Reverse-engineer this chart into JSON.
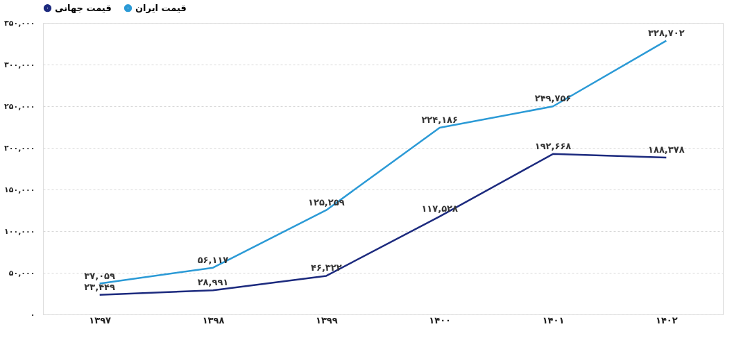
{
  "chart_data": {
    "type": "line",
    "categories": [
      "۱۳۹۷",
      "۱۳۹۸",
      "۱۳۹۹",
      "۱۴۰۰",
      "۱۴۰۱",
      "۱۴۰۲"
    ],
    "series": [
      {
        "name": "قیمت جهانی",
        "color": "#1c2a7e",
        "values": [
          23449,
          28991,
          46322,
          117528,
          192668,
          188378
        ],
        "value_labels": [
          "۲۳,۴۴۹",
          "۲۸,۹۹۱",
          "۴۶,۳۲۲",
          "۱۱۷,۵۲۸",
          "۱۹۲,۶۶۸",
          "۱۸۸,۳۷۸"
        ]
      },
      {
        "name": "قیمت ایران",
        "color": "#2b9ad6",
        "values": [
          37059,
          56117,
          125259,
          224186,
          249756,
          328702
        ],
        "value_labels": [
          "۳۷,۰۵۹",
          "۵۶,۱۱۷",
          "۱۲۵,۲۵۹",
          "۲۲۴,۱۸۶",
          "۲۴۹,۷۵۶",
          "۳۲۸,۷۰۲"
        ]
      }
    ],
    "ylim": [
      0,
      350000
    ],
    "yticks": [
      {
        "value": 0,
        "label": "۰"
      },
      {
        "value": 50000,
        "label": "۵۰,۰۰۰"
      },
      {
        "value": 100000,
        "label": "۱۰۰,۰۰۰"
      },
      {
        "value": 150000,
        "label": "۱۵۰,۰۰۰"
      },
      {
        "value": 200000,
        "label": "۲۰۰,۰۰۰"
      },
      {
        "value": 250000,
        "label": "۲۵۰,۰۰۰"
      },
      {
        "value": 300000,
        "label": "۳۰۰,۰۰۰"
      },
      {
        "value": 350000,
        "label": "۳۵۰,۰۰۰"
      }
    ],
    "grid": "y",
    "legend": "top left",
    "marker": "none",
    "line_style": "solid"
  }
}
